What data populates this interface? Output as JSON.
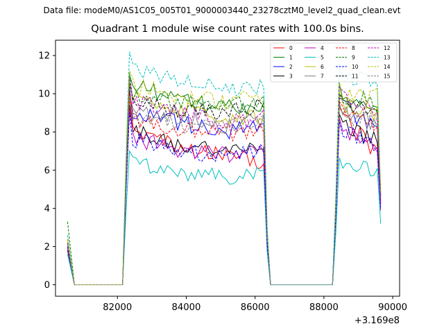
{
  "figure": {
    "suptitle": "Data file: modeM0/AS1C05_005T01_9000003440_23278cztM0_level2_quad_clean.evt"
  },
  "chart_data": {
    "type": "line",
    "title": "Quadrant 1 module wise count rates with 100.0s bins.",
    "xlabel": "",
    "ylabel": "",
    "x_offset_label": "+3.169e8",
    "xlim": [
      80200,
      90200
    ],
    "ylim": [
      -0.6,
      12.8
    ],
    "xticks": [
      82000,
      84000,
      86000,
      88000,
      90000
    ],
    "xtick_labels": [
      "82000",
      "84000",
      "86000",
      "88000",
      "90000"
    ],
    "yticks": [
      0,
      2,
      4,
      6,
      8,
      10,
      12
    ],
    "ytick_labels": [
      "0",
      "2",
      "4",
      "6",
      "8",
      "10",
      "12"
    ],
    "legend_location": "upper-right",
    "x_segments": [
      {
        "start": 80550,
        "end": 80650
      },
      {
        "start": 80750,
        "end": 82150
      },
      {
        "start": 82250,
        "end": 86350
      },
      {
        "start": 86450,
        "end": 88150
      },
      {
        "start": 88250,
        "end": 89650
      }
    ],
    "series": [
      {
        "name": "0",
        "color": "#ff0000",
        "style": "solid",
        "start": 2.0,
        "peak": 9.8,
        "plateau": [
          7.9,
          7.2,
          6.8,
          6.4
        ],
        "tail": 6.6,
        "final": 5.2
      },
      {
        "name": "1",
        "color": "#008000",
        "style": "solid",
        "start": 2.2,
        "peak": 11.0,
        "plateau": [
          10.4,
          9.8,
          9.2,
          9.5
        ],
        "tail": 8.9,
        "final": 4.6
      },
      {
        "name": "2",
        "color": "#0000ff",
        "style": "solid",
        "start": 2.1,
        "peak": 10.3,
        "plateau": [
          8.9,
          8.5,
          8.0,
          8.4
        ],
        "tail": 8.1,
        "final": 4.2
      },
      {
        "name": "3",
        "color": "#000000",
        "style": "solid",
        "start": 1.8,
        "peak": 9.4,
        "plateau": [
          8.2,
          7.3,
          6.9,
          7.2
        ],
        "tail": 7.3,
        "final": 4.4
      },
      {
        "name": "4",
        "color": "#bf00bf",
        "style": "solid",
        "start": 1.9,
        "peak": 9.2,
        "plateau": [
          7.7,
          7.0,
          6.8,
          7.1
        ],
        "tail": 7.0,
        "final": 3.9
      },
      {
        "name": "5",
        "color": "#00bfbf",
        "style": "solid",
        "start": 1.6,
        "peak": 7.0,
        "plateau": [
          6.4,
          5.9,
          5.6,
          6.0
        ],
        "tail": 6.0,
        "final": 3.2
      },
      {
        "name": "6",
        "color": "#bfbf00",
        "style": "solid",
        "start": 2.3,
        "peak": 10.6,
        "plateau": [
          9.9,
          9.2,
          8.6,
          9.0
        ],
        "tail": 8.8,
        "final": 4.9
      },
      {
        "name": "7",
        "color": "#808080",
        "style": "solid",
        "start": 2.1,
        "peak": 10.0,
        "plateau": [
          9.2,
          8.7,
          8.3,
          8.6
        ],
        "tail": 8.5,
        "final": 4.8
      },
      {
        "name": "8",
        "color": "#ff0000",
        "style": "dashed",
        "start": 2.4,
        "peak": 10.1,
        "plateau": [
          8.6,
          8.2,
          7.9,
          8.2
        ],
        "tail": 8.2,
        "final": 5.0
      },
      {
        "name": "9",
        "color": "#008000",
        "style": "dashed",
        "start": 3.3,
        "peak": 11.1,
        "plateau": [
          10.0,
          9.6,
          9.3,
          9.6
        ],
        "tail": 9.4,
        "final": 4.5
      },
      {
        "name": "10",
        "color": "#0000ff",
        "style": "dashed",
        "start": 2.0,
        "peak": 9.0,
        "plateau": [
          7.6,
          7.1,
          6.7,
          7.0
        ],
        "tail": 7.1,
        "final": 4.0
      },
      {
        "name": "11",
        "color": "#000000",
        "style": "dashed",
        "start": 2.2,
        "peak": 10.5,
        "plateau": [
          9.5,
          9.2,
          9.0,
          9.4
        ],
        "tail": 9.2,
        "final": 4.7
      },
      {
        "name": "12",
        "color": "#bf00bf",
        "style": "dashed",
        "start": 2.2,
        "peak": 10.9,
        "plateau": [
          9.6,
          9.0,
          8.5,
          8.8
        ],
        "tail": 8.7,
        "final": 4.3
      },
      {
        "name": "13",
        "color": "#00bfbf",
        "style": "dashed",
        "start": 2.6,
        "peak": 12.2,
        "plateau": [
          11.3,
          10.8,
          10.2,
          10.3
        ],
        "tail": 10.4,
        "final": 4.8
      },
      {
        "name": "14",
        "color": "#bfbf00",
        "style": "dashed",
        "start": 2.4,
        "peak": 11.2,
        "plateau": [
          10.4,
          9.9,
          9.6,
          9.8
        ],
        "tail": 9.8,
        "final": 4.9
      },
      {
        "name": "15",
        "color": "#808080",
        "style": "dashed",
        "start": 2.1,
        "peak": 9.9,
        "plateau": [
          8.8,
          8.4,
          8.2,
          8.5
        ],
        "tail": 8.4,
        "final": 4.6
      }
    ]
  }
}
